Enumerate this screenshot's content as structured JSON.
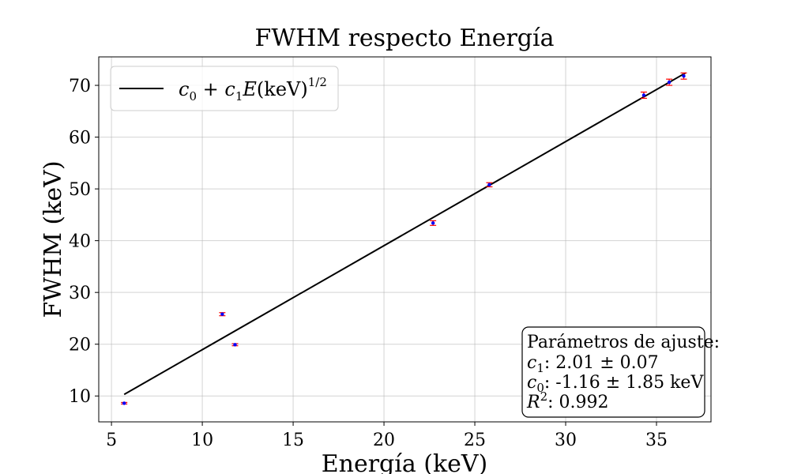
{
  "chart_data": {
    "type": "scatter",
    "title": "FWHM respecto Energía",
    "xlabel": "Energía (keV)",
    "ylabel": "FWHM (keV)",
    "xlim": [
      4.3,
      38.0
    ],
    "ylim": [
      5.0,
      75.5
    ],
    "xticks": [
      5,
      10,
      15,
      20,
      25,
      30,
      35
    ],
    "yticks": [
      10,
      20,
      30,
      40,
      50,
      60,
      70
    ],
    "grid": true,
    "legend_position": "top-left",
    "legend": {
      "label": "c0 + c1E(keV)1/2",
      "label_parts": {
        "c": "c",
        "sub0": "0",
        "plus": " + ",
        "sub1": "1",
        "E": "E",
        "unit": "(keV)",
        "exp": "1/2"
      }
    },
    "fit_line": {
      "x": [
        5.7,
        36.6
      ],
      "y": [
        10.3,
        72.4
      ],
      "color": "#000000"
    },
    "series": [
      {
        "marker_color": "#0000ff",
        "errorbar_color": "#ff0000",
        "x": [
          5.7,
          11.1,
          11.8,
          22.7,
          25.8,
          34.3,
          35.7,
          36.5
        ],
        "y": [
          8.6,
          25.8,
          19.9,
          43.4,
          50.8,
          68.1,
          70.6,
          71.8
        ],
        "yerr": [
          0.15,
          0.3,
          0.2,
          0.45,
          0.4,
          0.6,
          0.6,
          0.6
        ]
      }
    ],
    "params_box": {
      "heading": "Parámetros de ajuste:",
      "c1_var": "c",
      "c1_sub": "1",
      "c1_value": ": 2.01 ± 0.07",
      "c0_var": "c",
      "c0_sub": "0",
      "c0_value": ": -1.16 ± 1.85 keV",
      "r2_var": "R",
      "r2_sup": "2",
      "r2_value": ": 0.992",
      "position": "bottom-right"
    }
  }
}
